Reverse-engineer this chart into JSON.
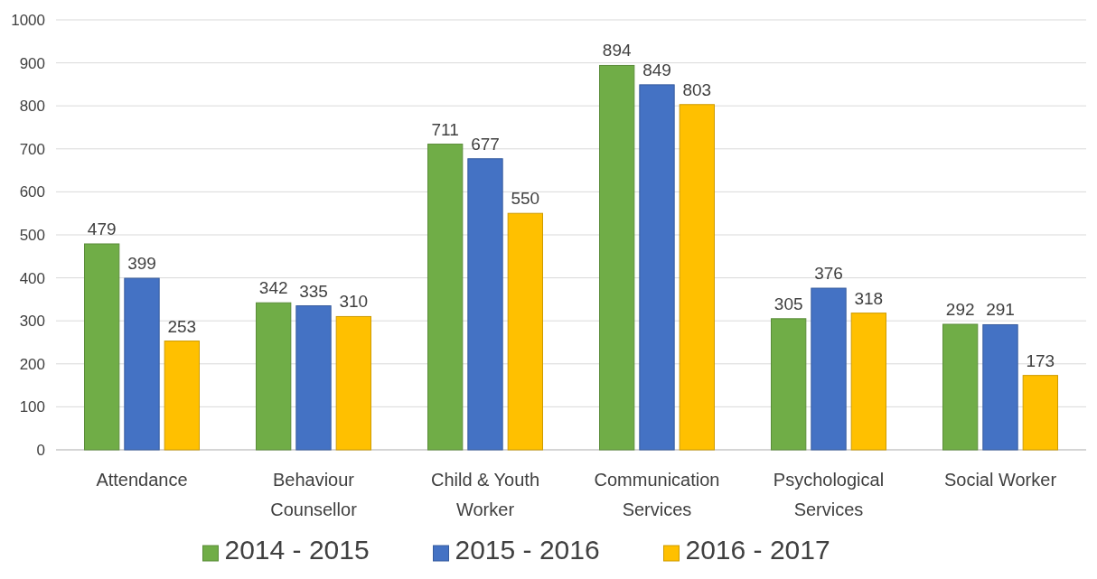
{
  "chart_data": {
    "type": "bar",
    "categories": [
      "Attendance",
      "Behaviour Counsellor",
      "Child & Youth Worker",
      "Communication Services",
      "Psychological Services",
      "Social Worker"
    ],
    "series": [
      {
        "name": "2014 - 2015",
        "color": "#70ad47",
        "values": [
          479,
          342,
          711,
          894,
          305,
          292
        ]
      },
      {
        "name": "2015 - 2016",
        "color": "#4472c4",
        "values": [
          399,
          335,
          677,
          849,
          376,
          291
        ]
      },
      {
        "name": "2016 - 2017",
        "color": "#ffc000",
        "values": [
          253,
          310,
          550,
          803,
          318,
          173
        ]
      }
    ],
    "ylim": [
      0,
      1000
    ],
    "yticks": [
      0,
      100,
      200,
      300,
      400,
      500,
      600,
      700,
      800,
      900,
      1000
    ],
    "grid": "y",
    "legend": "bottom",
    "data_labels": true
  }
}
